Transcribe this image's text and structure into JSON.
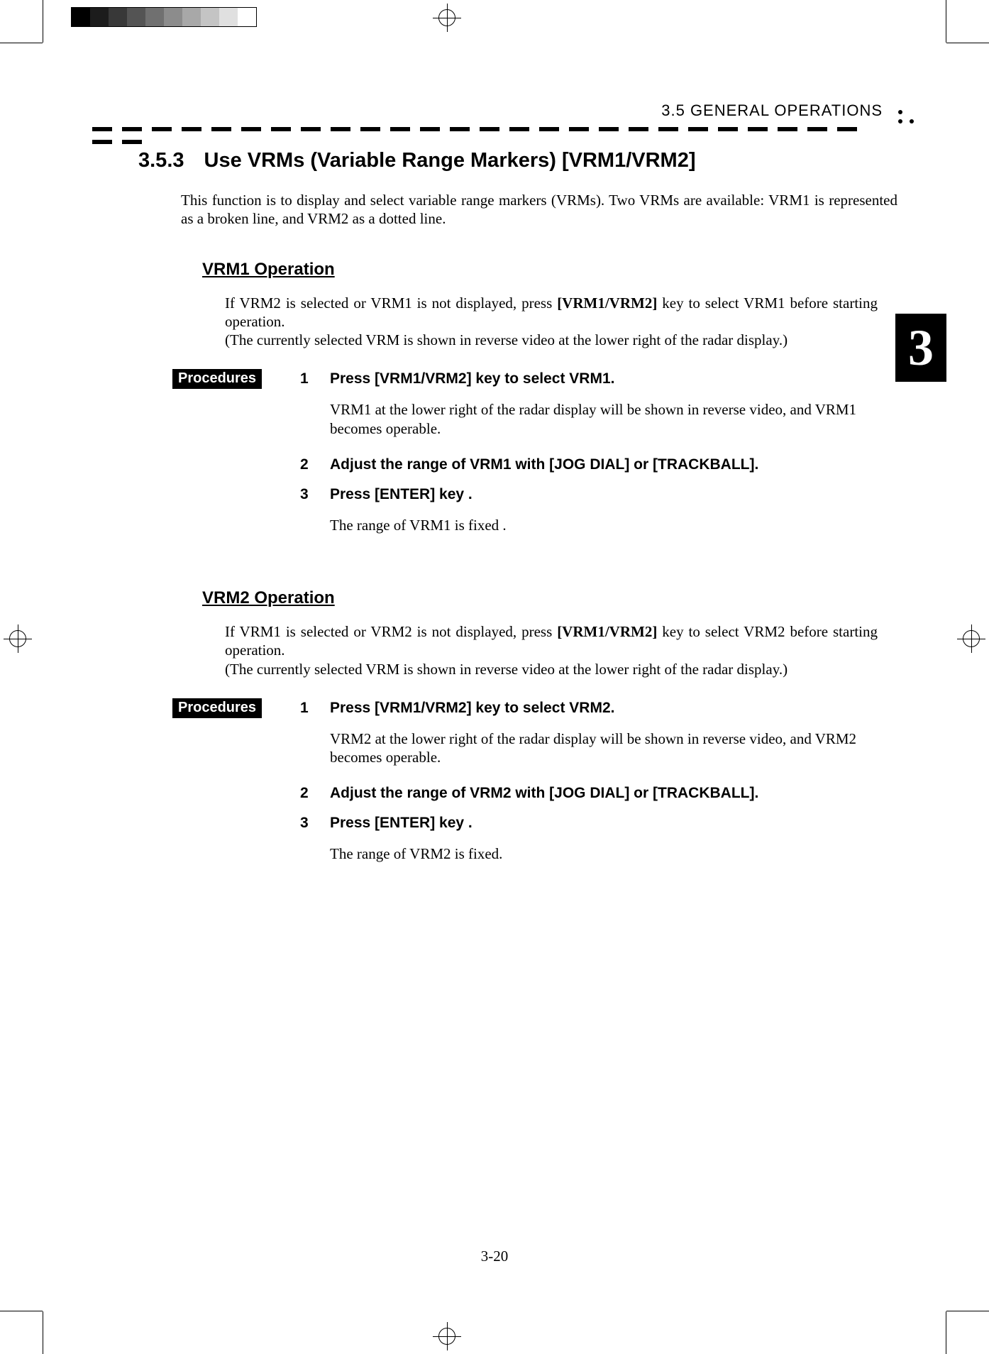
{
  "grayscale": [
    "#000000",
    "#1c1c1c",
    "#383838",
    "#545454",
    "#707070",
    "#8c8c8c",
    "#a8a8a8",
    "#c4c4c4",
    "#e0e0e0",
    "#ffffff"
  ],
  "header": {
    "section_label": "3.5   GENERAL  OPERATIONS"
  },
  "chapter_tab": "3",
  "heading": {
    "number": "3.5.3",
    "title": "Use VRMs (Variable Range Markers) [VRM1/VRM2]"
  },
  "intro": "This function is to display and select variable range markers (VRMs).   Two VRMs are available: VRM1 is represented as a broken line, and VRM2 as a dotted line.",
  "proc_label": "Procedures",
  "vrm1": {
    "title": "VRM1 Operation",
    "para_pre": "If VRM2 is selected or VRM1 is not displayed, press ",
    "para_key": "[VRM1/VRM2]",
    "para_post": " key to select VRM1 before starting operation.",
    "para_note": "(The currently selected VRM is shown in reverse video at the lower right of the radar display.)",
    "steps": [
      {
        "n": "1",
        "t": "Press [VRM1/VRM2] key to select VRM1.",
        "body": "VRM1 at the lower right of the radar display will be shown in reverse video, and VRM1 becomes operable."
      },
      {
        "n": "2",
        "t": "Adjust the range of VRM1 with [JOG DIAL] or [TRACKBALL].",
        "body": ""
      },
      {
        "n": "3",
        "t": "Press [ENTER] key .",
        "body": "The range of VRM1 is fixed ."
      }
    ]
  },
  "vrm2": {
    "title": "VRM2 Operation",
    "para_pre": "If VRM1 is selected or VRM2 is not displayed, press ",
    "para_key": "[VRM1/VRM2]",
    "para_post": " key to select VRM2 before starting operation.",
    "para_note": "(The currently selected VRM is shown in reverse video at the lower right of the radar display.)",
    "steps": [
      {
        "n": "1",
        "t": "Press [VRM1/VRM2] key to select VRM2.",
        "body": "VRM2 at the lower right of the radar display will be shown in reverse video, and VRM2 becomes operable."
      },
      {
        "n": "2",
        "t": "Adjust the range of VRM2 with [JOG DIAL] or [TRACKBALL].",
        "body": ""
      },
      {
        "n": "3",
        "t": "Press [ENTER] key .",
        "body": "The range of VRM2 is fixed."
      }
    ]
  },
  "page_number": "3-20"
}
